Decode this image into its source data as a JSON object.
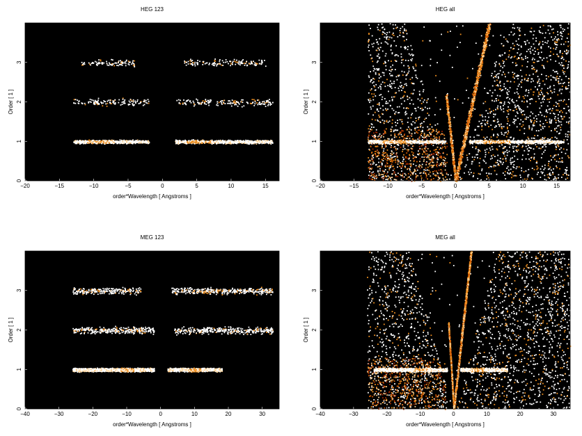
{
  "background_color": "#000000",
  "colormap": [
    "#5a0a00",
    "#a02800",
    "#d25a00",
    "#f09020",
    "#ffd090",
    "#ffffff"
  ],
  "chart_data": [
    {
      "type": "heatmap",
      "title": "HEG 123",
      "xlabel": "order*Wavelength [ Angstroms ]",
      "ylabel": "Order [ 1 ]",
      "xlim": [
        -20,
        17
      ],
      "ylim": [
        0,
        4
      ],
      "xticks": [
        -20,
        -15,
        -10,
        -5,
        0,
        5,
        10,
        15
      ],
      "yticks": [
        0,
        1,
        2,
        3
      ],
      "bands": [
        {
          "order": 1,
          "x_ranges": [
            [
              -13,
              -2
            ],
            [
              1.8,
              16
            ]
          ],
          "intensity": 0.95,
          "hot_spots": [
            -9,
            5.5
          ]
        },
        {
          "order": 2,
          "x_ranges": [
            [
              -13,
              -2
            ],
            [
              2,
              16
            ]
          ],
          "intensity": 0.35,
          "hot_spots": []
        },
        {
          "order": 3,
          "x_ranges": [
            [
              -12,
              -4
            ],
            [
              3,
              15
            ]
          ],
          "intensity": 0.2,
          "hot_spots": []
        }
      ],
      "diagonal_streaks": false
    },
    {
      "type": "heatmap",
      "title": "HEG all",
      "xlabel": "order*Wavelength [ Angstroms ]",
      "ylabel": "Order [ 1 ]",
      "xlim": [
        -20,
        17
      ],
      "ylim": [
        0,
        4
      ],
      "xticks": [
        -20,
        -15,
        -10,
        -5,
        0,
        5,
        10,
        15
      ],
      "yticks": [
        0,
        1,
        2,
        3
      ],
      "bands": [
        {
          "order": 1,
          "x_ranges": [
            [
              -13,
              -1.5
            ],
            [
              2,
              16
            ]
          ],
          "intensity": 0.95,
          "hot_spots": [
            -9,
            6
          ]
        }
      ],
      "diagonal_streaks": true,
      "background_noise_x": [
        -13,
        17
      ]
    },
    {
      "type": "heatmap",
      "title": "MEG 123",
      "xlabel": "order*Wavelength [ Angstroms ]",
      "ylabel": "Order [ 1 ]",
      "xlim": [
        -40,
        35
      ],
      "ylim": [
        0,
        4
      ],
      "xticks": [
        -40,
        -30,
        -20,
        -10,
        0,
        10,
        20,
        30
      ],
      "yticks": [
        0,
        1,
        2,
        3
      ],
      "bands": [
        {
          "order": 1,
          "x_ranges": [
            [
              -26,
              -2
            ],
            [
              2,
              18
            ]
          ],
          "intensity": 1.0,
          "hot_spots": [
            -10,
            10
          ]
        },
        {
          "order": 2,
          "x_ranges": [
            [
              -26,
              -2
            ],
            [
              4,
              33
            ]
          ],
          "intensity": 0.4,
          "hot_spots": []
        },
        {
          "order": 3,
          "x_ranges": [
            [
              -26,
              -6
            ],
            [
              3,
              33
            ]
          ],
          "intensity": 0.4,
          "hot_spots": []
        }
      ],
      "diagonal_streaks": false
    },
    {
      "type": "heatmap",
      "title": "MEG all",
      "xlabel": "order*Wavelength [ Angstroms ]",
      "ylabel": "Order [ 1 ]",
      "xlim": [
        -40,
        35
      ],
      "ylim": [
        0,
        4
      ],
      "xticks": [
        -40,
        -30,
        -20,
        -10,
        0,
        10,
        20,
        30
      ],
      "yticks": [
        0,
        1,
        2,
        3
      ],
      "bands": [
        {
          "order": 1,
          "x_ranges": [
            [
              -24,
              -2
            ],
            [
              2,
              16
            ]
          ],
          "intensity": 1.0,
          "hot_spots": [
            -10,
            7
          ]
        }
      ],
      "diagonal_streaks": true,
      "background_noise_x": [
        -26,
        35
      ]
    }
  ]
}
